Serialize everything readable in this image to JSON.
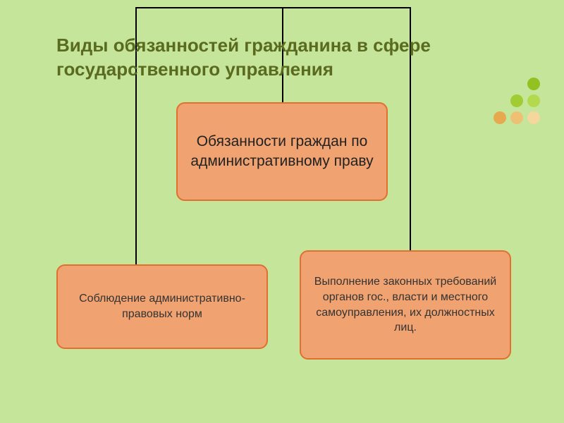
{
  "background_color": "#c5e59b",
  "title": {
    "text": "Виды обязанностей гражданина в сфере государственного управления",
    "color": "#5a6b1f",
    "fontsize": 26
  },
  "boxes": {
    "top": {
      "text": "Обязанности граждан\nпо административному праву",
      "fill": "#f0a270",
      "border": "#e07030",
      "text_color": "#222222"
    },
    "left": {
      "text": "Соблюдение\nадминистративно-правовых норм",
      "fill": "#f0a270",
      "border": "#e07030",
      "text_color": "#333333"
    },
    "right": {
      "text": "Выполнение\nзаконных требований органов гос., власти и местного самоуправления, их должностных лиц.",
      "fill": "#f0a270",
      "border": "#e07030",
      "text_color": "#333333"
    }
  },
  "connector_color": "#000000",
  "decoration_dots": {
    "colors": [
      "#94c122",
      "#a2cc33",
      "#b3d94f",
      "#e7a94e",
      "#efc074",
      "#f5d69c"
    ],
    "positions": [
      {
        "row": 0,
        "col": 2
      },
      {
        "row": 1,
        "col": 1
      },
      {
        "row": 1,
        "col": 2
      },
      {
        "row": 2,
        "col": 0
      },
      {
        "row": 2,
        "col": 1
      },
      {
        "row": 2,
        "col": 2
      }
    ],
    "dot_size": 18,
    "spacing": 24
  }
}
